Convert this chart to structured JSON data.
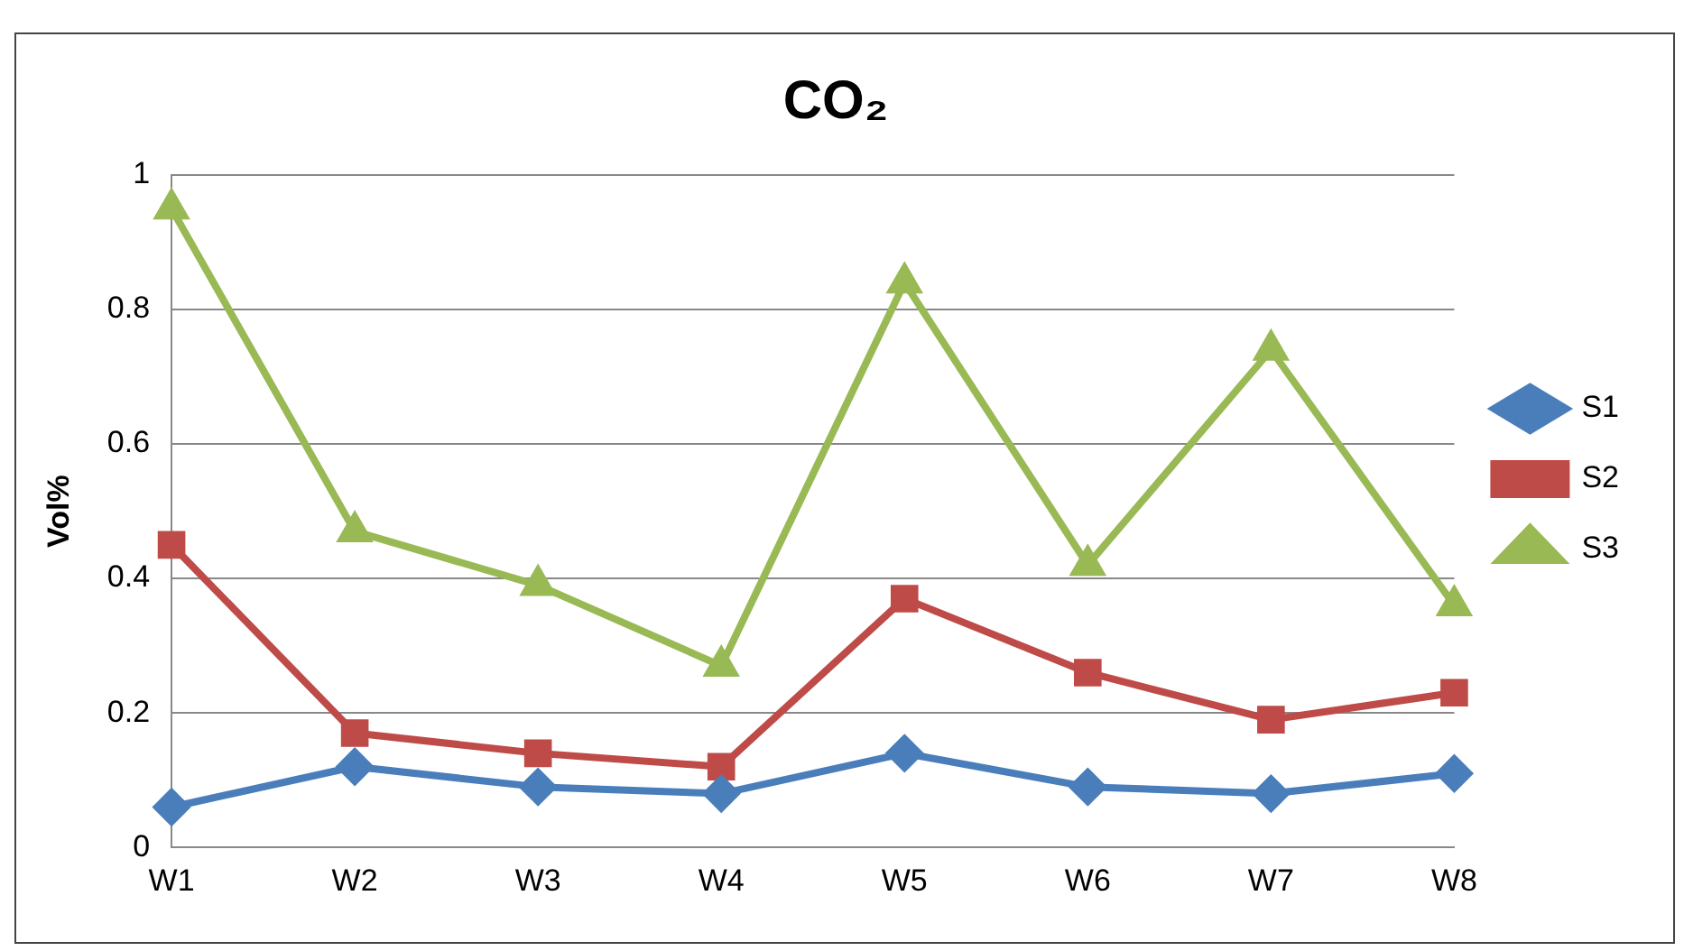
{
  "chart_data": {
    "type": "line",
    "title": "CO₂",
    "ylabel": "Vol%",
    "categories": [
      "W1",
      "W2",
      "W3",
      "W4",
      "W5",
      "W6",
      "W7",
      "W8"
    ],
    "series": [
      {
        "name": "S1",
        "color": "#4a7ebb",
        "marker": "diamond",
        "values": [
          0.06,
          0.12,
          0.09,
          0.08,
          0.14,
          0.09,
          0.08,
          0.11
        ]
      },
      {
        "name": "S2",
        "color": "#be4b48",
        "marker": "square",
        "values": [
          0.45,
          0.17,
          0.14,
          0.12,
          0.37,
          0.26,
          0.19,
          0.23
        ]
      },
      {
        "name": "S3",
        "color": "#98b954",
        "marker": "triangle",
        "values": [
          0.95,
          0.47,
          0.39,
          0.27,
          0.84,
          0.42,
          0.74,
          0.36
        ]
      }
    ],
    "ylim": [
      0,
      1
    ],
    "yticks": [
      0,
      0.2,
      0.4,
      0.6,
      0.8,
      1
    ],
    "grid": "y",
    "legend": "right"
  }
}
